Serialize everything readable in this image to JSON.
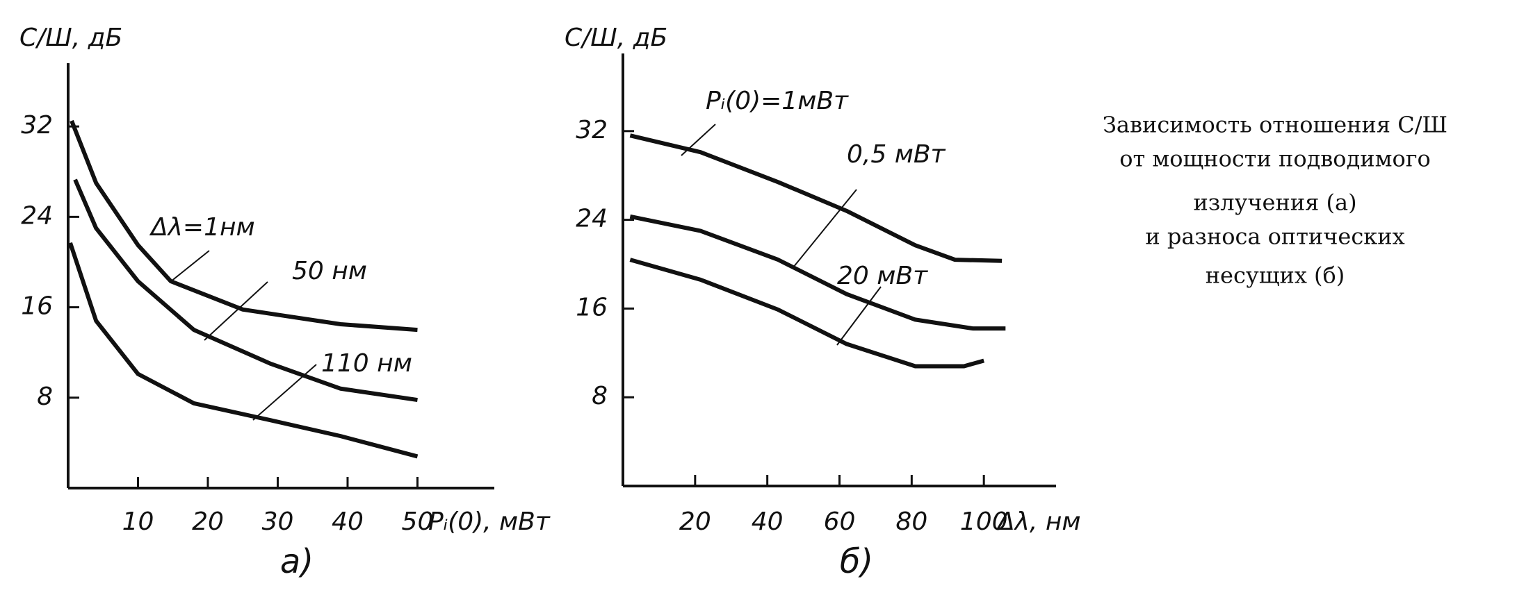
{
  "chart_data": [
    {
      "type": "line",
      "y_label": "С/Ш, дБ",
      "x_label": "Pᵢ(0), мВт",
      "subtitle": "а)",
      "xlim": [
        0,
        61
      ],
      "ylim": [
        0,
        37.6
      ],
      "xticks": [
        10,
        20,
        30,
        40,
        50
      ],
      "yticks": [
        8,
        16,
        24,
        32
      ],
      "series": [
        {
          "name": "Δλ=1нм",
          "color": "#111111",
          "x": [
            0.5,
            4,
            10,
            14.7,
            25,
            39,
            50
          ],
          "values": [
            32.5,
            27,
            21.5,
            18.3,
            15.8,
            14.5,
            14
          ]
        },
        {
          "name": "50 нм",
          "color": "#111111",
          "x": [
            1,
            4,
            10,
            18,
            29,
            39,
            50
          ],
          "values": [
            27.3,
            23,
            18.3,
            14,
            11,
            8.8,
            7.8
          ]
        },
        {
          "name": "110 нм",
          "color": "#111111",
          "x": [
            0.3,
            4,
            10,
            18,
            29,
            39,
            50
          ],
          "values": [
            21.7,
            14.8,
            10.1,
            7.5,
            6,
            4.6,
            2.8
          ]
        }
      ]
    },
    {
      "type": "line",
      "y_label": "С/Ш, дБ",
      "x_label": "Δλ, нм",
      "subtitle": "б)",
      "xlim": [
        0,
        120
      ],
      "ylim": [
        0,
        39
      ],
      "xticks": [
        20,
        40,
        60,
        80,
        100
      ],
      "yticks": [
        8,
        16,
        24,
        32
      ],
      "series": [
        {
          "name": "Pᵢ(0)=1мВт",
          "color": "#111111",
          "x": [
            2,
            21.5,
            43,
            62,
            81,
            92,
            105
          ],
          "values": [
            31.6,
            30.1,
            27.4,
            24.8,
            21.7,
            20.4,
            20.3
          ]
        },
        {
          "name": "0,5 мВт",
          "color": "#111111",
          "x": [
            2,
            21.5,
            43,
            62,
            81,
            97,
            106
          ],
          "values": [
            24.3,
            23,
            20.4,
            17.3,
            15,
            14.2,
            14.2
          ]
        },
        {
          "name": "20 мВт",
          "color": "#111111",
          "x": [
            2,
            21.5,
            43,
            62,
            81,
            94.5,
            100
          ],
          "values": [
            20.4,
            18.6,
            15.9,
            12.8,
            10.8,
            10.8,
            11.3
          ]
        }
      ]
    }
  ],
  "caption": [
    "Зависимость отношения С/Ш",
    "от мощности подводимого",
    "излучения (а)",
    "и разноса оптических",
    "несущих (б)"
  ]
}
